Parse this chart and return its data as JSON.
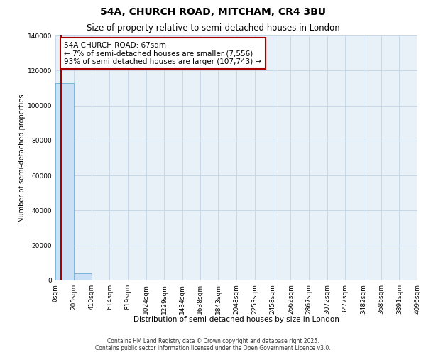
{
  "title": "54A, CHURCH ROAD, MITCHAM, CR4 3BU",
  "subtitle": "Size of property relative to semi-detached houses in London",
  "xlabel": "Distribution of semi-detached houses by size in London",
  "ylabel": "Number of semi-detached properties",
  "property_size": 67,
  "annotation_text": "54A CHURCH ROAD: 67sqm\n← 7% of semi-detached houses are smaller (7,556)\n93% of semi-detached houses are larger (107,743) →",
  "bin_edges": [
    0,
    205,
    410,
    614,
    819,
    1024,
    1229,
    1434,
    1638,
    1843,
    2048,
    2253,
    2458,
    2662,
    2867,
    3072,
    3277,
    3482,
    3686,
    3891,
    4096
  ],
  "bin_counts": [
    113000,
    4200,
    0,
    0,
    0,
    0,
    0,
    0,
    0,
    0,
    0,
    0,
    0,
    0,
    0,
    0,
    0,
    0,
    0,
    0
  ],
  "bar_color": "#cce0f5",
  "bar_edge_color": "#7ab5d9",
  "vline_color": "#aa0000",
  "vline_x": 67,
  "ylim": [
    0,
    140000
  ],
  "yticks": [
    0,
    20000,
    40000,
    60000,
    80000,
    100000,
    120000,
    140000
  ],
  "grid_color": "#c8d8e8",
  "annotation_box_edge_color": "#aa0000",
  "bg_color": "#e8f0f8",
  "footer_line1": "Contains HM Land Registry data © Crown copyright and database right 2025.",
  "footer_line2": "Contains public sector information licensed under the Open Government Licence v3.0.",
  "title_fontsize": 10,
  "subtitle_fontsize": 8.5,
  "ylabel_fontsize": 7,
  "xlabel_fontsize": 7.5,
  "tick_label_fontsize": 6.5,
  "annotation_fontsize": 7.5,
  "footer_fontsize": 5.5
}
